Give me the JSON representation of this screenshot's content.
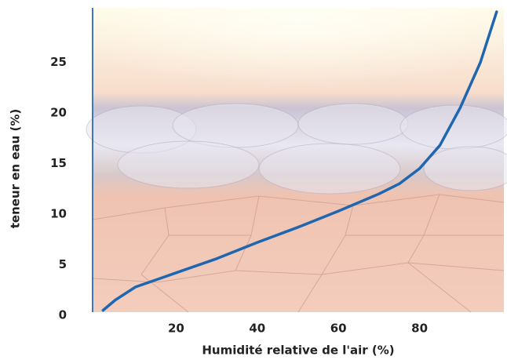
{
  "chart_data": {
    "type": "line",
    "xlabel": "Humidité relative de l'air (%)",
    "ylabel": "teneur en eau (%)",
    "x": [
      2,
      5,
      10,
      15,
      20,
      30,
      40,
      50,
      60,
      70,
      75,
      80,
      85,
      90,
      95,
      99
    ],
    "series": [
      {
        "color": "#1f66b0",
        "values": [
          0.5,
          1.5,
          2.8,
          3.5,
          4.2,
          5.6,
          7.2,
          8.7,
          10.3,
          12,
          13,
          14.5,
          16.8,
          20.5,
          25,
          30
        ]
      }
    ],
    "xlim": [
      0,
      100
    ],
    "ylim": [
      0,
      30
    ],
    "xticks": [
      20,
      40,
      60,
      80
    ],
    "yticks": [
      0,
      5,
      10,
      15,
      20,
      25
    ]
  }
}
